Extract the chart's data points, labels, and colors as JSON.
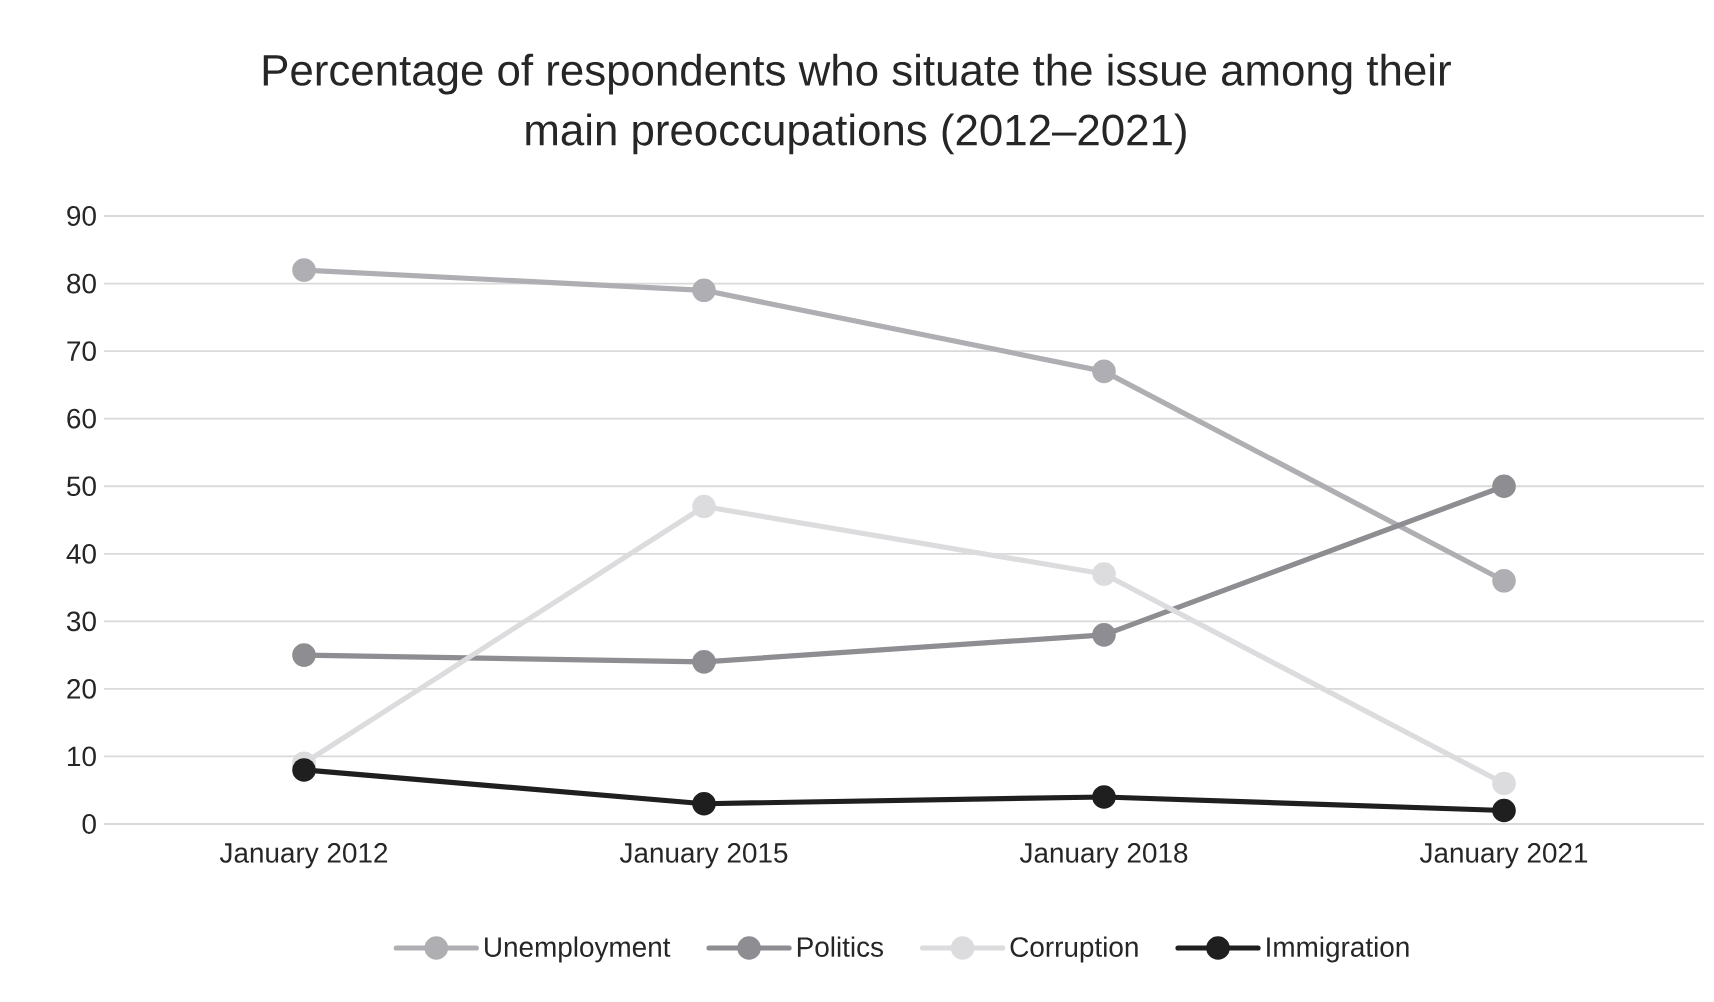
{
  "chart_data": {
    "type": "line",
    "title": "Percentage of respondents who situate the issue among their main preoccupations (2012–2021)",
    "categories": [
      "January 2012",
      "January 2015",
      "January 2018",
      "January 2021"
    ],
    "series": [
      {
        "name": "Unemployment",
        "color": "#afafb3",
        "values": [
          82,
          79,
          67,
          36
        ]
      },
      {
        "name": "Politics",
        "color": "#8e8e92",
        "values": [
          25,
          24,
          28,
          50
        ]
      },
      {
        "name": "Corruption",
        "color": "#dcdcde",
        "values": [
          9,
          47,
          37,
          6
        ]
      },
      {
        "name": "Immigration",
        "color": "#1f1f1f",
        "values": [
          8,
          3,
          4,
          2
        ]
      }
    ],
    "ylim": [
      0,
      90
    ],
    "yticks": [
      0,
      10,
      20,
      30,
      40,
      50,
      60,
      70,
      80,
      90
    ],
    "grid": "y",
    "legend": "bottom",
    "marker": "circle",
    "line_style": "solid"
  }
}
